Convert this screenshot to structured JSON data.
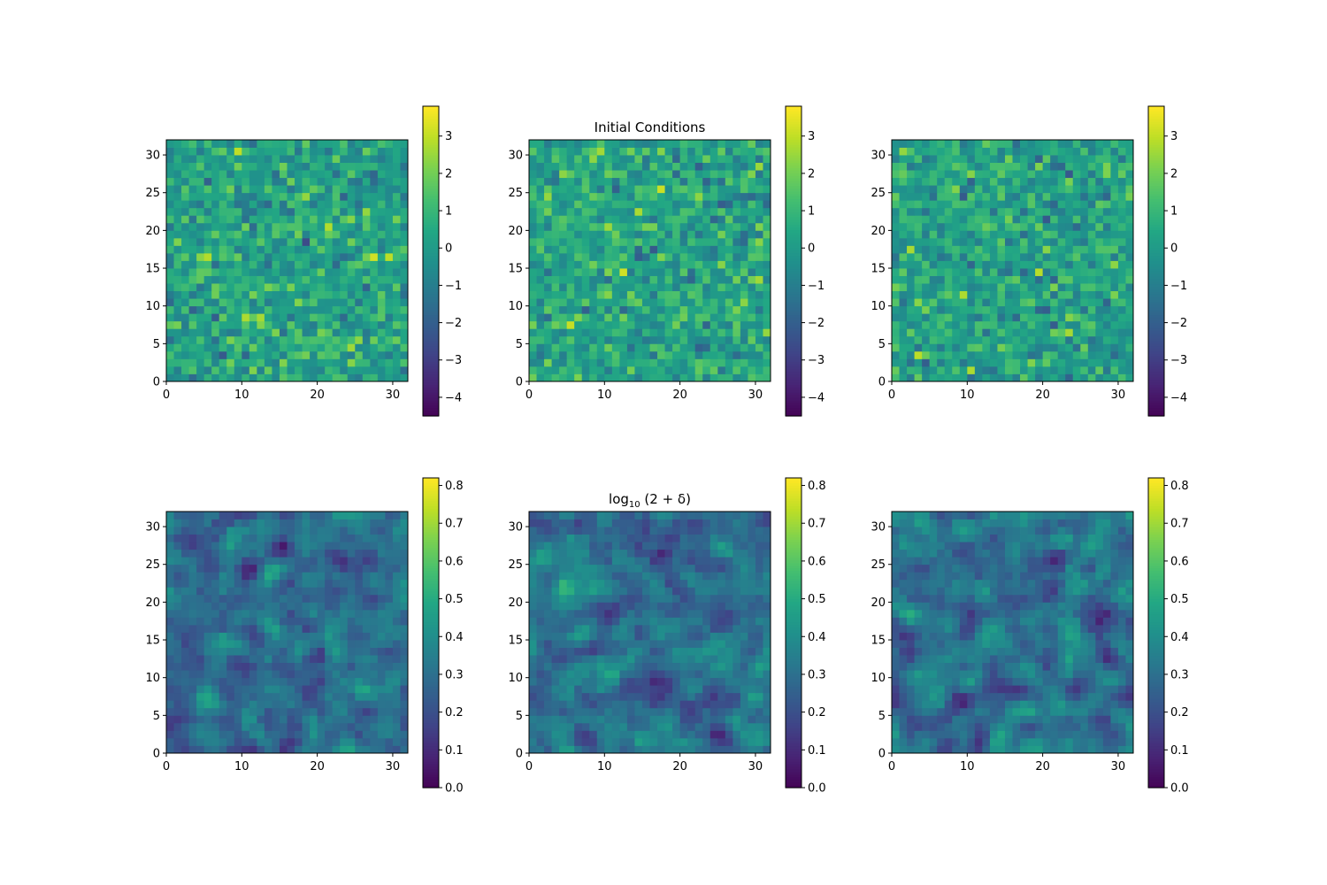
{
  "chart_data": [
    {
      "type": "heatmap",
      "row": 0,
      "title": "",
      "grid_size": 32,
      "xlim": [
        0,
        32
      ],
      "ylim": [
        0,
        32
      ],
      "xticks": [
        "0",
        "10",
        "20",
        "30"
      ],
      "yticks": [
        "0",
        "5",
        "10",
        "15",
        "20",
        "25",
        "30"
      ],
      "colormap": "viridis",
      "vmin": -4.5,
      "vmax": 3.8,
      "colorbar_ticks": [
        "3",
        "2",
        "1",
        "0",
        "−1",
        "−2",
        "−3",
        "−4"
      ],
      "colorbar_tick_values": [
        3,
        2,
        1,
        0,
        -1,
        -2,
        -3,
        -4
      ],
      "values_note": "random Gaussian field, values within colorbar range",
      "seed": 11
    },
    {
      "type": "heatmap",
      "row": 0,
      "title": "Initial Conditions",
      "grid_size": 32,
      "xlim": [
        0,
        32
      ],
      "ylim": [
        0,
        32
      ],
      "xticks": [
        "0",
        "10",
        "20",
        "30"
      ],
      "yticks": [
        "0",
        "5",
        "10",
        "15",
        "20",
        "25",
        "30"
      ],
      "colormap": "viridis",
      "vmin": -4.5,
      "vmax": 3.8,
      "colorbar_ticks": [
        "3",
        "2",
        "1",
        "0",
        "−1",
        "−2",
        "−3",
        "−4"
      ],
      "colorbar_tick_values": [
        3,
        2,
        1,
        0,
        -1,
        -2,
        -3,
        -4
      ],
      "values_note": "random Gaussian field, values within colorbar range",
      "seed": 23
    },
    {
      "type": "heatmap",
      "row": 0,
      "title": "",
      "grid_size": 32,
      "xlim": [
        0,
        32
      ],
      "ylim": [
        0,
        32
      ],
      "xticks": [
        "0",
        "10",
        "20",
        "30"
      ],
      "yticks": [
        "0",
        "5",
        "10",
        "15",
        "20",
        "25",
        "30"
      ],
      "colormap": "viridis",
      "vmin": -4.5,
      "vmax": 3.8,
      "colorbar_ticks": [
        "3",
        "2",
        "1",
        "0",
        "−1",
        "−2",
        "−3",
        "−4"
      ],
      "colorbar_tick_values": [
        3,
        2,
        1,
        0,
        -1,
        -2,
        -3,
        -4
      ],
      "values_note": "random Gaussian field, values within colorbar range",
      "seed": 37
    },
    {
      "type": "heatmap",
      "row": 1,
      "title": "",
      "grid_size": 32,
      "xlim": [
        0,
        32
      ],
      "ylim": [
        0,
        32
      ],
      "xticks": [
        "0",
        "10",
        "20",
        "30"
      ],
      "yticks": [
        "0",
        "5",
        "10",
        "15",
        "20",
        "25",
        "30"
      ],
      "colormap": "viridis",
      "vmin": 0.0,
      "vmax": 0.82,
      "colorbar_ticks": [
        "0.8",
        "0.7",
        "0.6",
        "0.5",
        "0.4",
        "0.3",
        "0.2",
        "0.1",
        "0.0"
      ],
      "colorbar_tick_values": [
        0.8,
        0.7,
        0.6,
        0.5,
        0.4,
        0.3,
        0.2,
        0.1,
        0.0
      ],
      "values_note": "smoothed random field",
      "seed": 41
    },
    {
      "type": "heatmap",
      "row": 1,
      "title": "log10 (2 + δ)",
      "title_parts": {
        "base": "log",
        "sub": "10",
        "rest": " (2 + δ)"
      },
      "grid_size": 32,
      "xlim": [
        0,
        32
      ],
      "ylim": [
        0,
        32
      ],
      "xticks": [
        "0",
        "10",
        "20",
        "30"
      ],
      "yticks": [
        "0",
        "5",
        "10",
        "15",
        "20",
        "25",
        "30"
      ],
      "colormap": "viridis",
      "vmin": 0.0,
      "vmax": 0.82,
      "colorbar_ticks": [
        "0.8",
        "0.7",
        "0.6",
        "0.5",
        "0.4",
        "0.3",
        "0.2",
        "0.1",
        "0.0"
      ],
      "colorbar_tick_values": [
        0.8,
        0.7,
        0.6,
        0.5,
        0.4,
        0.3,
        0.2,
        0.1,
        0.0
      ],
      "values_note": "smoothed random field",
      "seed": 53
    },
    {
      "type": "heatmap",
      "row": 1,
      "title": "",
      "grid_size": 32,
      "xlim": [
        0,
        32
      ],
      "ylim": [
        0,
        32
      ],
      "xticks": [
        "0",
        "10",
        "20",
        "30"
      ],
      "yticks": [
        "0",
        "5",
        "10",
        "15",
        "20",
        "25",
        "30"
      ],
      "colormap": "viridis",
      "vmin": 0.0,
      "vmax": 0.82,
      "colorbar_ticks": [
        "0.8",
        "0.7",
        "0.6",
        "0.5",
        "0.4",
        "0.3",
        "0.2",
        "0.1",
        "0.0"
      ],
      "colorbar_tick_values": [
        0.8,
        0.7,
        0.6,
        0.5,
        0.4,
        0.3,
        0.2,
        0.1,
        0.0
      ],
      "values_note": "smoothed random field",
      "seed": 67
    }
  ]
}
